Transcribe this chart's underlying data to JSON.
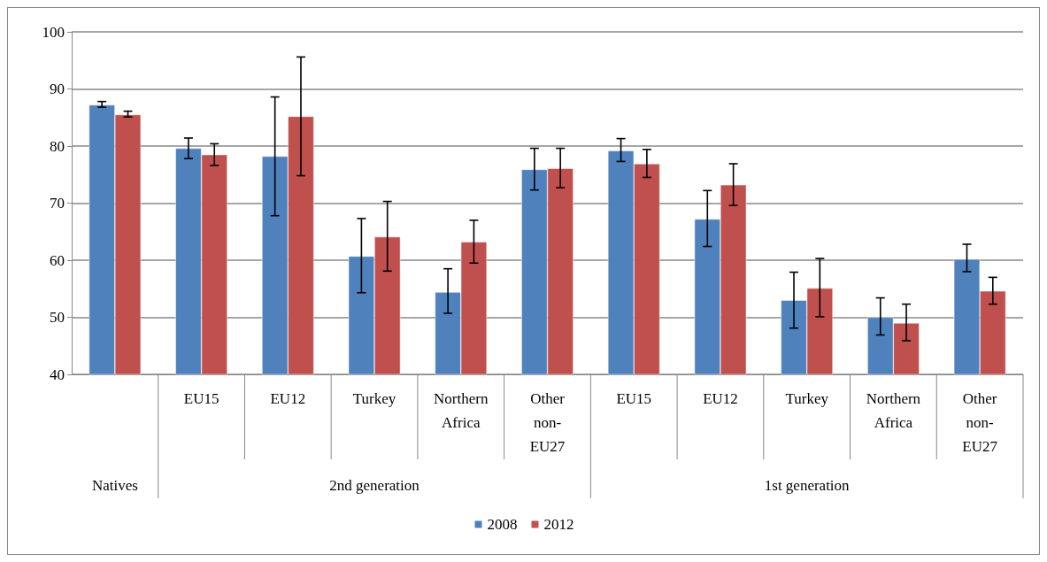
{
  "chart_data": {
    "type": "bar",
    "categories": [
      null,
      "EU15",
      "EU12",
      "Turkey",
      "Northern Africa",
      "Other non-EU27",
      "EU15",
      "EU12",
      "Turkey",
      "Northern Africa",
      "Other non-EU27"
    ],
    "annotations": [
      "Natives",
      "2nd generation",
      "1st generation"
    ],
    "series": [
      {
        "name": "2008",
        "color": "#4f81bd",
        "values": [
          87.2,
          79.6,
          78.2,
          60.7,
          54.4,
          75.9,
          79.2,
          67.2,
          53.0,
          50.0,
          60.2
        ],
        "errors": [
          [
            86.8,
            87.8
          ],
          [
            77.8,
            81.4
          ],
          [
            67.8,
            88.6
          ],
          [
            54.3,
            67.3
          ],
          [
            50.7,
            58.5
          ],
          [
            72.3,
            79.6
          ],
          [
            77.3,
            81.3
          ],
          [
            62.4,
            72.2
          ],
          [
            48.1,
            57.9
          ],
          [
            46.9,
            53.4
          ],
          [
            58.0,
            62.8
          ]
        ]
      },
      {
        "name": "2012",
        "color": "#c0504d",
        "values": [
          85.5,
          78.5,
          85.2,
          64.1,
          63.2,
          76.1,
          76.9,
          73.2,
          55.1,
          49.0,
          54.6
        ],
        "errors": [
          [
            85.1,
            86.1
          ],
          [
            76.6,
            80.4
          ],
          [
            74.8,
            95.6
          ],
          [
            58.1,
            70.3
          ],
          [
            59.5,
            67.0
          ],
          [
            72.7,
            79.6
          ],
          [
            74.5,
            79.4
          ],
          [
            69.6,
            76.9
          ],
          [
            50.1,
            60.3
          ],
          [
            45.9,
            52.3
          ],
          [
            52.3,
            57.0
          ]
        ]
      }
    ],
    "ylim": [
      40,
      100
    ],
    "yticks": [
      40,
      50,
      60,
      70,
      80,
      90,
      100
    ],
    "grid": "y",
    "legend": "bottom"
  }
}
